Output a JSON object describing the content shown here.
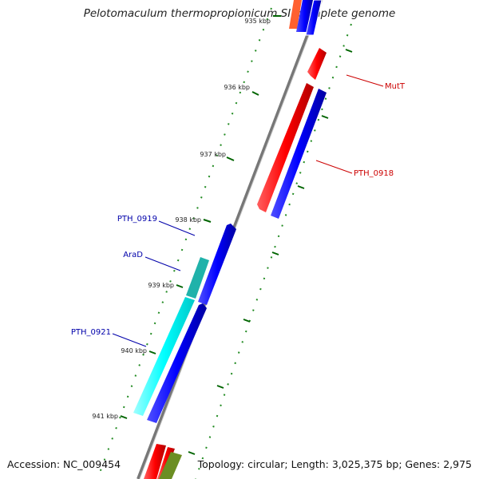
{
  "title": "Pelotomaculum thermopropionicum SI, complete genome",
  "footer": {
    "accession": "Accession: NC_009454",
    "summary": "Topology: circular; Length: 3,025,375 bp; Genes: 2,975"
  },
  "ticks": [
    {
      "label": "935 kbp"
    },
    {
      "label": "936 kbp"
    },
    {
      "label": "937 kbp"
    },
    {
      "label": "938 kbp"
    },
    {
      "label": "939 kbp"
    },
    {
      "label": "940 kbp"
    },
    {
      "label": "941 kbp"
    }
  ],
  "genes": [
    {
      "name": "MutT",
      "color": "#cc0000"
    },
    {
      "name": "PTH_0918",
      "color": "#cc0000"
    },
    {
      "name": "PTH_0919",
      "color": "#0000aa"
    },
    {
      "name": "AraD",
      "color": "#0000aa"
    },
    {
      "name": "PTH_0921",
      "color": "#0000aa"
    }
  ],
  "colors": {
    "forward": "#ff0000",
    "reverse": "#0000ff",
    "cog_cyan": "#00ffff",
    "cog_olive": "#6b8e23",
    "ticks": "#006400",
    "backbone": "#888888"
  }
}
